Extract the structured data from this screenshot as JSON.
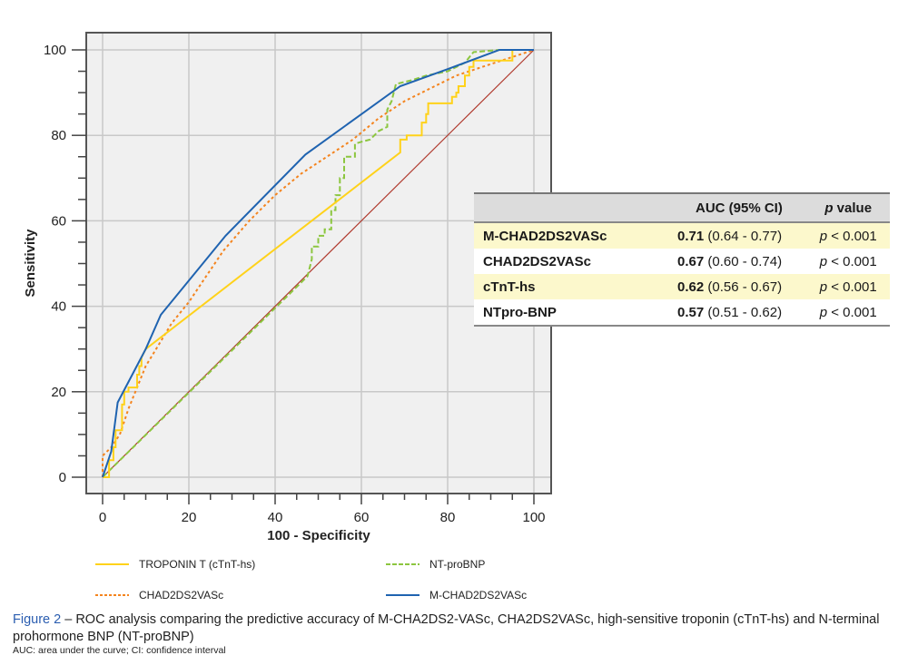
{
  "chart_data": {
    "type": "line",
    "title": "",
    "xlabel": "100 - Specificity",
    "ylabel": "Sensitivity",
    "xlim": [
      0,
      100
    ],
    "ylim": [
      0,
      100
    ],
    "x_ticks": [
      0,
      20,
      40,
      60,
      80,
      100
    ],
    "y_ticks": [
      0,
      20,
      40,
      60,
      80,
      100
    ],
    "x_minor_step": 5,
    "y_minor_step": 5,
    "grid": true,
    "legend_position": "bottom",
    "series": [
      {
        "name": "TROPONIN T (cTnT-hs)",
        "color": "#ffd21a",
        "style": "solid",
        "points": [
          [
            0,
            0
          ],
          [
            1.5,
            0
          ],
          [
            1.5,
            4
          ],
          [
            2.5,
            4
          ],
          [
            2.5,
            7
          ],
          [
            3,
            7
          ],
          [
            3,
            11
          ],
          [
            4.5,
            11
          ],
          [
            4.5,
            17
          ],
          [
            5,
            17
          ],
          [
            5,
            20
          ],
          [
            6,
            20
          ],
          [
            6,
            21
          ],
          [
            8,
            21
          ],
          [
            8,
            24
          ],
          [
            8.5,
            24
          ],
          [
            8.5,
            26
          ],
          [
            9,
            26
          ],
          [
            9,
            28
          ],
          [
            10,
            30
          ],
          [
            69,
            76
          ],
          [
            69,
            79
          ],
          [
            70.5,
            79
          ],
          [
            70.5,
            80
          ],
          [
            74,
            80
          ],
          [
            74,
            83
          ],
          [
            75,
            83
          ],
          [
            75,
            85
          ],
          [
            75.5,
            85
          ],
          [
            75.5,
            87.5
          ],
          [
            81,
            87.5
          ],
          [
            81,
            89
          ],
          [
            82,
            89
          ],
          [
            82,
            90
          ],
          [
            82.5,
            90
          ],
          [
            82.5,
            91.5
          ],
          [
            84,
            91.5
          ],
          [
            84,
            94
          ],
          [
            85,
            94
          ],
          [
            85,
            96
          ],
          [
            86,
            96
          ],
          [
            86,
            97.5
          ],
          [
            95,
            97.5
          ],
          [
            95,
            100
          ],
          [
            100,
            100
          ]
        ]
      },
      {
        "name": "NT-proBNP",
        "color": "#8cc63f",
        "style": "dashed",
        "points": [
          [
            0,
            0
          ],
          [
            47.5,
            47
          ],
          [
            48.5,
            51
          ],
          [
            48.5,
            54
          ],
          [
            50,
            54
          ],
          [
            50,
            56.5
          ],
          [
            51.5,
            56.5
          ],
          [
            51.5,
            58
          ],
          [
            53,
            58
          ],
          [
            53,
            62.5
          ],
          [
            54,
            62.5
          ],
          [
            54,
            66
          ],
          [
            55,
            66
          ],
          [
            55,
            70
          ],
          [
            56,
            70
          ],
          [
            56,
            75
          ],
          [
            58.5,
            75
          ],
          [
            58.5,
            78
          ],
          [
            60,
            78.5
          ],
          [
            62,
            79
          ],
          [
            64,
            81
          ],
          [
            66,
            82
          ],
          [
            66,
            86
          ],
          [
            67,
            88
          ],
          [
            68,
            92
          ],
          [
            70,
            92.5
          ],
          [
            72,
            93
          ],
          [
            75,
            94
          ],
          [
            80,
            95
          ],
          [
            84,
            97
          ],
          [
            86,
            99.5
          ],
          [
            92,
            100
          ],
          [
            100,
            100
          ]
        ]
      },
      {
        "name": "CHAD2DS2VASc",
        "color": "#f4841e",
        "style": "dotted",
        "points": [
          [
            0,
            0
          ],
          [
            0,
            5
          ],
          [
            2,
            7
          ],
          [
            4,
            10
          ],
          [
            6,
            16
          ],
          [
            8,
            21
          ],
          [
            10,
            26
          ],
          [
            13,
            31
          ],
          [
            16,
            36
          ],
          [
            20,
            41
          ],
          [
            24,
            47
          ],
          [
            28,
            53
          ],
          [
            34,
            60
          ],
          [
            40,
            66
          ],
          [
            46,
            71
          ],
          [
            52,
            75
          ],
          [
            58,
            79
          ],
          [
            64,
            84
          ],
          [
            70,
            88
          ],
          [
            76,
            91
          ],
          [
            82,
            94
          ],
          [
            88,
            96
          ],
          [
            94,
            98
          ],
          [
            100,
            100
          ]
        ]
      },
      {
        "name": "M-CHAD2DS2VASc",
        "color": "#1f63b0",
        "style": "solid",
        "points": [
          [
            0,
            0
          ],
          [
            2,
            6
          ],
          [
            3.5,
            17.5
          ],
          [
            10,
            30
          ],
          [
            13.5,
            38
          ],
          [
            28.5,
            56.5
          ],
          [
            47,
            75.5
          ],
          [
            69,
            91.5
          ],
          [
            80,
            95.5
          ],
          [
            92,
            100
          ],
          [
            100,
            100
          ]
        ]
      },
      {
        "name": "reference",
        "color": "#b03a2e",
        "style": "solid",
        "points": [
          [
            0,
            0
          ],
          [
            100,
            100
          ]
        ]
      }
    ]
  },
  "legend": [
    {
      "label": "TROPONIN T (cTnT-hs)",
      "color": "#ffd21a",
      "style": "solid"
    },
    {
      "label": "NT-proBNP",
      "color": "#8cc63f",
      "style": "dashed"
    },
    {
      "label": "CHAD2DS2VASc",
      "color": "#f4841e",
      "style": "dotted"
    },
    {
      "label": "M-CHAD2DS2VASc",
      "color": "#1f63b0",
      "style": "solid"
    }
  ],
  "table": {
    "headers": [
      "",
      "AUC (95% CI)",
      "p",
      " value"
    ],
    "rows": [
      {
        "name": "M-CHAD2DS2VASc",
        "auc": "0.71",
        "ci": " (0.64 - 0.77)",
        "p_italic": "p",
        "p_rest": " < 0.001",
        "highlight": true
      },
      {
        "name": "CHAD2DS2VASc",
        "auc": "0.67",
        "ci": " (0.60 - 0.74)",
        "p_italic": "p",
        "p_rest": " < 0.001",
        "highlight": false
      },
      {
        "name": "cTnT-hs",
        "auc": "0.62",
        "ci": " (0.56 - 0.67)",
        "p_italic": "p",
        "p_rest": " < 0.001",
        "highlight": true
      },
      {
        "name": "NTpro-BNP",
        "auc": "0.57",
        "ci": " (0.51 - 0.62)",
        "p_italic": "p",
        "p_rest": " < 0.001",
        "highlight": false
      }
    ]
  },
  "caption": {
    "label": "Figure 2",
    "text": " – ROC analysis comparing the predictive accuracy of M-CHA2DS2-VASc, CHA2DS2VASc, high-sensitive troponin (cTnT-hs) and N-terminal prohormone BNP (NT-proBNP)",
    "footnote": "AUC: area under the curve; CI: confidence interval"
  }
}
